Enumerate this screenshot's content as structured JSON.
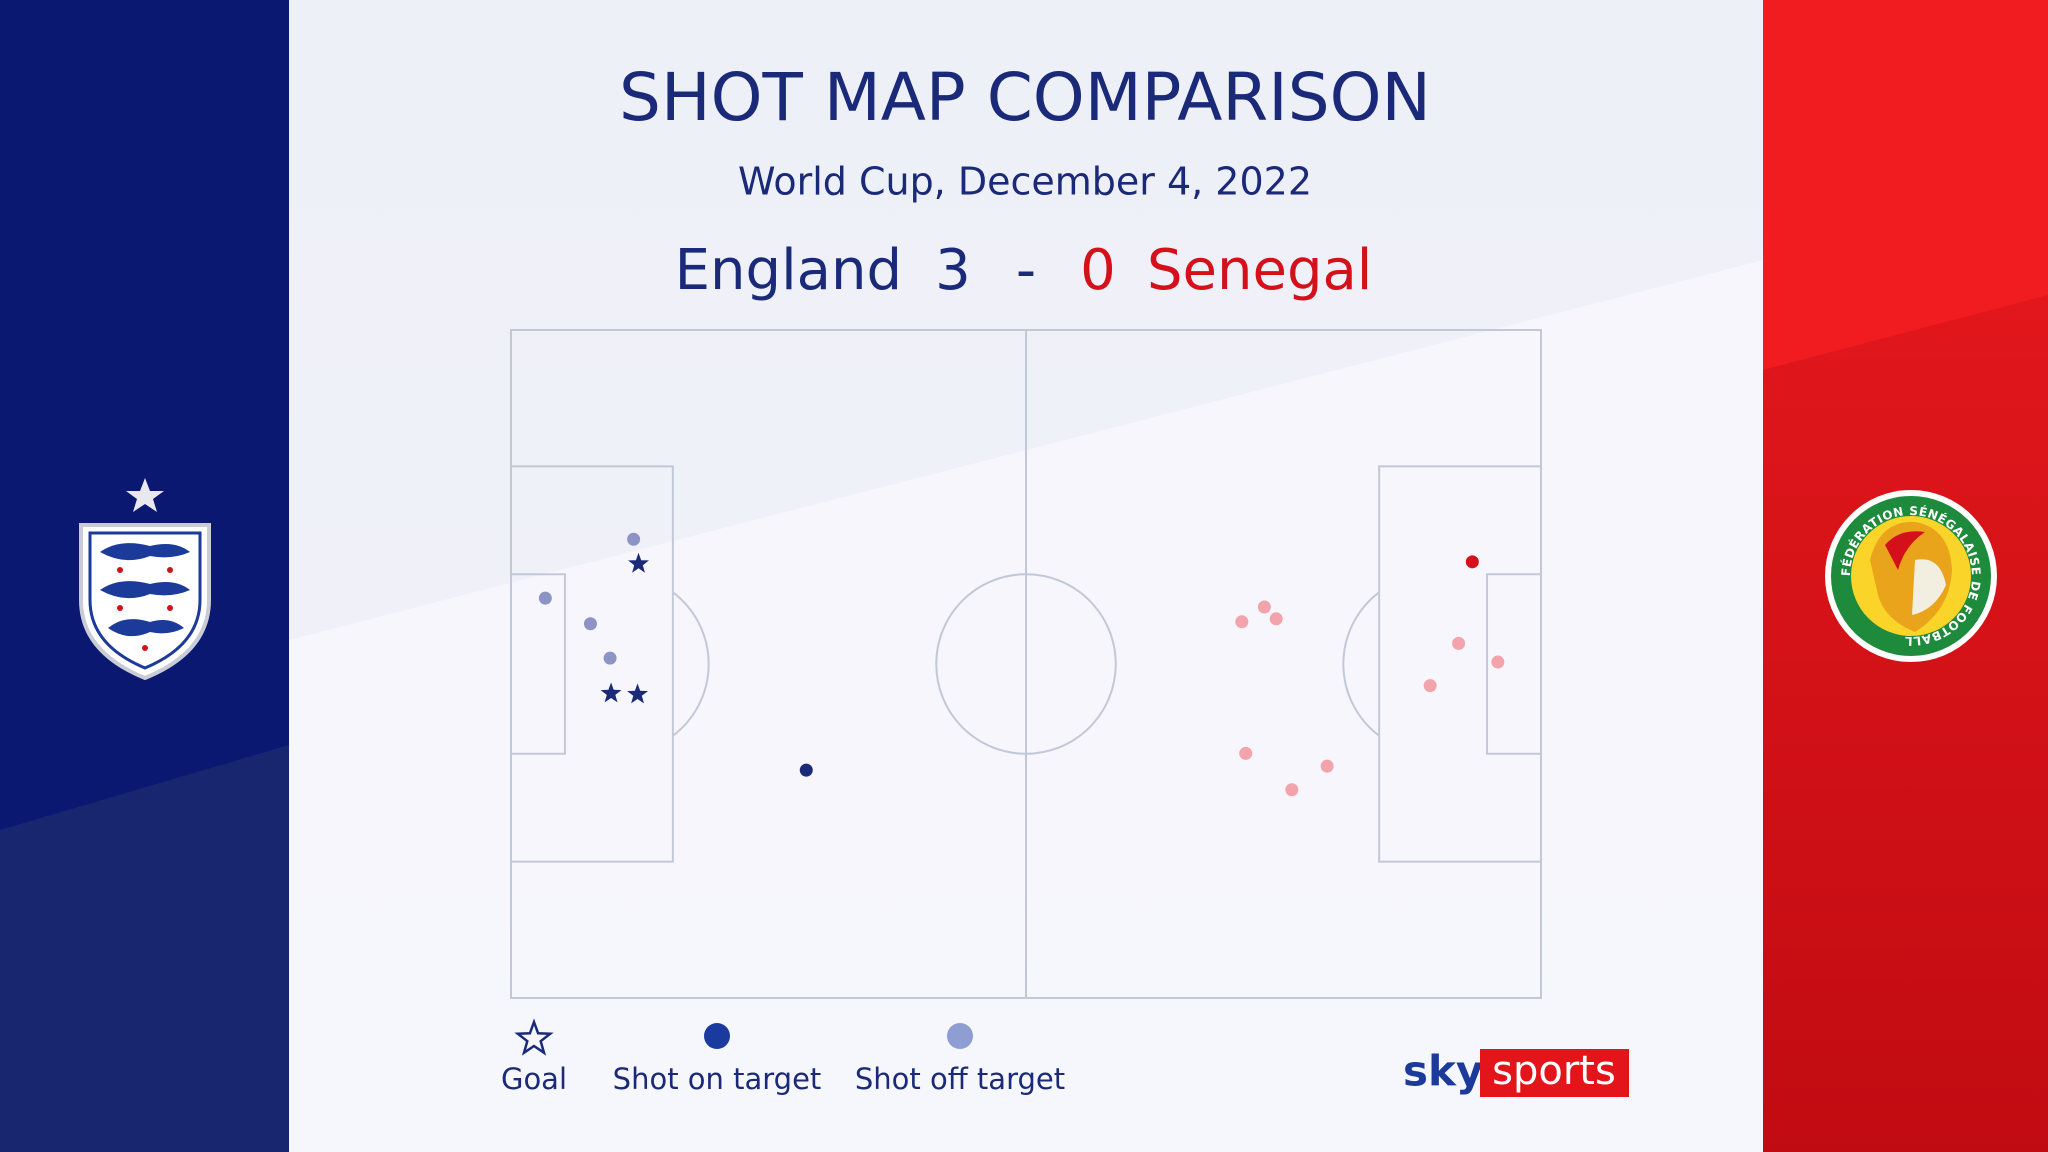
{
  "title": "SHOT MAP COMPARISON",
  "subtitle": "World Cup, December 4, 2022",
  "score_separator": "-",
  "branding": {
    "sky": "sky",
    "sports": "sports"
  },
  "crest_text": "FÉDÉRATION SÉNÉGALAISE DE FOOTBALL",
  "chart_data": {
    "type": "scatter",
    "xlim": [
      0,
      105
    ],
    "ylim": [
      0,
      68
    ],
    "series": [
      {
        "name": "England",
        "score": 3,
        "color": "#1b2a78",
        "off_color": "#8e93c6",
        "x": [
          13.0,
          10.2,
          12.9,
          12.5,
          3.5,
          8.1,
          10.1,
          30.1
        ],
        "values": [
          23.8,
          37.0,
          37.1,
          21.3,
          27.3,
          29.9,
          33.4,
          44.8
        ],
        "shot_types": [
          "goal",
          "goal",
          "goal",
          "off",
          "off",
          "off",
          "off",
          "on"
        ]
      },
      {
        "name": "Senegal",
        "score": 0,
        "color": "#d4111b",
        "off_color": "#f2a3ab",
        "x": [
          98.0,
          74.5,
          76.8,
          78.0,
          96.6,
          100.6,
          93.7,
          74.9,
          83.2,
          79.6
        ],
        "values": [
          23.6,
          29.7,
          28.2,
          29.4,
          31.9,
          33.8,
          36.2,
          43.1,
          44.4,
          46.8
        ],
        "shot_types": [
          "on",
          "off",
          "off",
          "off",
          "off",
          "off",
          "off",
          "off",
          "off",
          "off"
        ]
      }
    ],
    "legend": [
      {
        "label": "Goal",
        "marker": "goal",
        "color": "#1b2a78"
      },
      {
        "label": "Shot on target",
        "marker": "on",
        "color": "#1a3aa0"
      },
      {
        "label": "Shot off target",
        "marker": "off",
        "color": "#8e9dd2"
      }
    ]
  }
}
